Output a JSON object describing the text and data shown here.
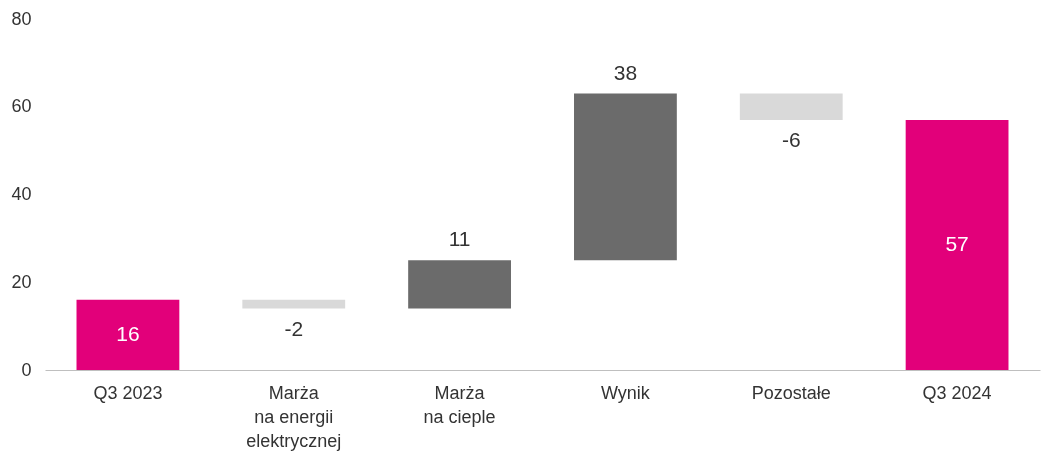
{
  "chart_data": {
    "type": "bar",
    "categories": [
      "Q3 2023",
      "Marża\nna energii\nelektrycznej",
      "Marża\nna cieple",
      "Wynik",
      "Pozostałe",
      "Q3 2024"
    ],
    "values": [
      16,
      -2,
      11,
      38,
      -6,
      57
    ],
    "base": [
      0,
      16,
      14,
      25,
      63,
      0
    ],
    "colors": [
      "#e2007a",
      "#d9d9d9",
      "#6b6b6b",
      "#6b6b6b",
      "#d9d9d9",
      "#e2007a"
    ],
    "ylim": [
      0,
      80
    ],
    "yticks": [
      0,
      20,
      40,
      60,
      80
    ],
    "data_labels": true,
    "grid": false
  }
}
